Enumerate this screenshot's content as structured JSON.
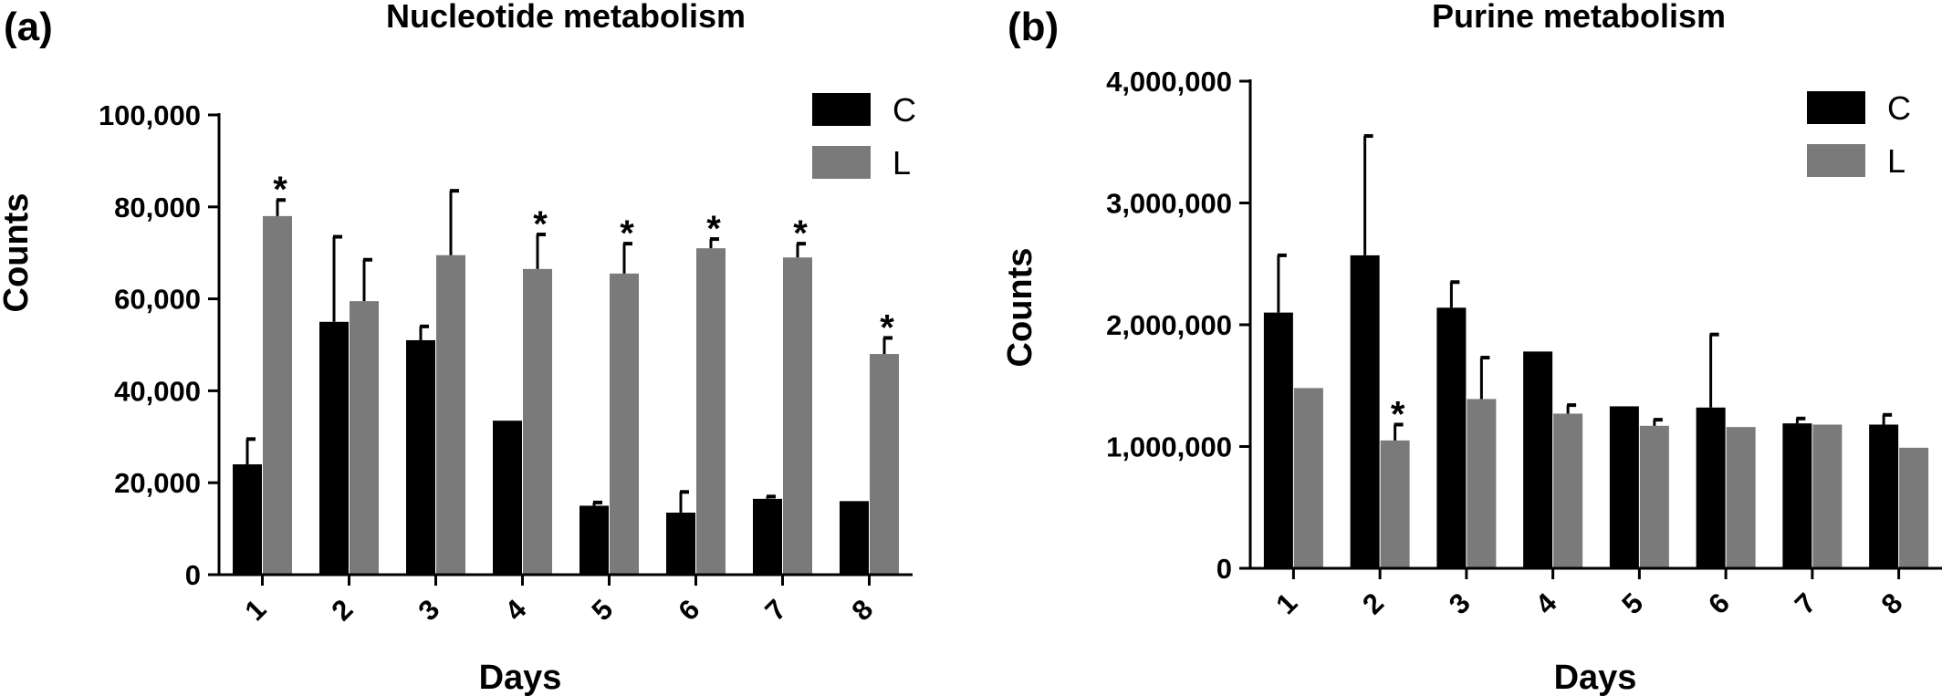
{
  "chart_data": [
    {
      "type": "bar",
      "panel_label": "(a)",
      "title": "Nucleotide metabolism",
      "xlabel": "Days",
      "ylabel": "Counts",
      "ylim": [
        0,
        100000
      ],
      "yticks": [
        "0",
        "20,000",
        "40,000",
        "60,000",
        "80,000",
        "100,000"
      ],
      "categories": [
        "1",
        "2",
        "3",
        "4",
        "5",
        "6",
        "7",
        "8"
      ],
      "series": [
        {
          "name": "C",
          "color": "#000000",
          "values": [
            24000,
            55000,
            51000,
            33500,
            15000,
            13500,
            16500,
            16000
          ],
          "errors": [
            5500,
            18500,
            3000,
            0,
            700,
            4500,
            500,
            0
          ]
        },
        {
          "name": "L",
          "color": "#7a7a7a",
          "values": [
            78000,
            59500,
            69500,
            66500,
            65500,
            71000,
            69000,
            48000
          ],
          "errors": [
            3500,
            9000,
            14000,
            7500,
            6500,
            2000,
            3000,
            3500
          ]
        }
      ],
      "significance": [
        {
          "category": "1",
          "series": "L",
          "label": "*"
        },
        {
          "category": "4",
          "series": "L",
          "label": "*"
        },
        {
          "category": "5",
          "series": "L",
          "label": "*"
        },
        {
          "category": "6",
          "series": "L",
          "label": "*"
        },
        {
          "category": "7",
          "series": "L",
          "label": "*"
        },
        {
          "category": "8",
          "series": "L",
          "label": "*"
        }
      ],
      "legend_position": "top-right"
    },
    {
      "type": "bar",
      "panel_label": "(b)",
      "title": "Purine metabolism",
      "xlabel": "Days",
      "ylabel": "Counts",
      "ylim": [
        0,
        4000000
      ],
      "yticks": [
        "0",
        "1,000,000",
        "2,000,000",
        "3,000,000",
        "4,000,000"
      ],
      "categories": [
        "1",
        "2",
        "3",
        "4",
        "5",
        "6",
        "7",
        "8"
      ],
      "series": [
        {
          "name": "C",
          "color": "#000000",
          "values": [
            2100000,
            2570000,
            2140000,
            1780000,
            1330000,
            1320000,
            1190000,
            1180000
          ],
          "errors": [
            470000,
            980000,
            210000,
            0,
            0,
            600000,
            40000,
            80000
          ]
        },
        {
          "name": "L",
          "color": "#7a7a7a",
          "values": [
            1480000,
            1050000,
            1390000,
            1270000,
            1170000,
            1160000,
            1180000,
            990000
          ],
          "errors": [
            0,
            130000,
            340000,
            70000,
            50000,
            0,
            0,
            0
          ]
        }
      ],
      "significance": [
        {
          "category": "2",
          "series": "L",
          "label": "*"
        }
      ],
      "legend_position": "top-right"
    }
  ]
}
